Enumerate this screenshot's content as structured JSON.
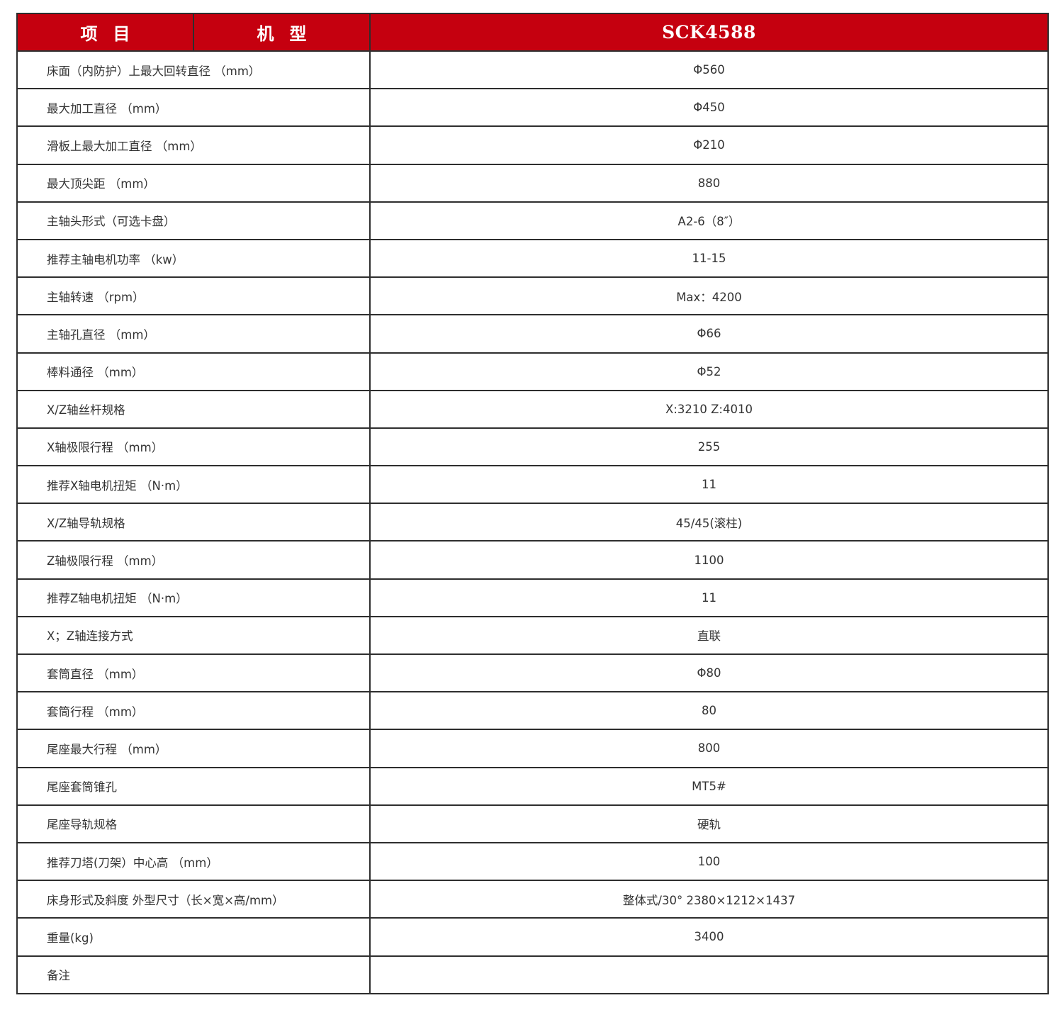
{
  "header": {
    "item_label": "项目",
    "model_label": "机型",
    "model_name": "SCK4588"
  },
  "colors": {
    "header_bg": "#c5000f",
    "header_text": "#ffffff",
    "border": "#2e2e2e"
  },
  "rows": [
    {
      "label": "床面（内防护）上最大回转直径 （mm）",
      "value": "Φ560"
    },
    {
      "label": "最大加工直径 （mm）",
      "value": "Φ450"
    },
    {
      "label": "滑板上最大加工直径 （mm）",
      "value": "Φ210"
    },
    {
      "label": "最大顶尖距 （mm）",
      "value": "880"
    },
    {
      "label": "主轴头形式（可选卡盘）",
      "value": "A2-6（8″）"
    },
    {
      "label": "推荐主轴电机功率 （kw）",
      "value": "11-15"
    },
    {
      "label": "主轴转速 （rpm）",
      "value": "Max：4200"
    },
    {
      "label": "主轴孔直径 （mm）",
      "value": "Φ66"
    },
    {
      "label": "棒料通径 （mm）",
      "value": "Φ52"
    },
    {
      "label": "X/Z轴丝杆规格",
      "value": "X:3210 Z:4010"
    },
    {
      "label": "X轴极限行程 （mm）",
      "value": "255"
    },
    {
      "label": "推荐X轴电机扭矩 （N·m）",
      "value": "11"
    },
    {
      "label": "X/Z轴导轨规格",
      "value": "45/45(滚柱)"
    },
    {
      "label": "Z轴极限行程 （mm）",
      "value": "1100"
    },
    {
      "label": "推荐Z轴电机扭矩 （N·m）",
      "value": "11"
    },
    {
      "label": "X；Z轴连接方式",
      "value": "直联"
    },
    {
      "label": "套筒直径 （mm）",
      "value": "Φ80"
    },
    {
      "label": "套筒行程 （mm）",
      "value": "80"
    },
    {
      "label": "尾座最大行程 （mm）",
      "value": "800"
    },
    {
      "label": "尾座套筒锥孔",
      "value": "MT5#"
    },
    {
      "label": "尾座导轨规格",
      "value": "硬轨"
    },
    {
      "label": "推荐刀塔(刀架）中心高 （mm）",
      "value": "100"
    },
    {
      "label": "床身形式及斜度  外型尺寸（长×宽×高/mm）",
      "value": "整体式/30°  2380×1212×1437"
    },
    {
      "label": "重量(kg)",
      "value": "3400"
    },
    {
      "label": "备注",
      "value": ""
    }
  ]
}
